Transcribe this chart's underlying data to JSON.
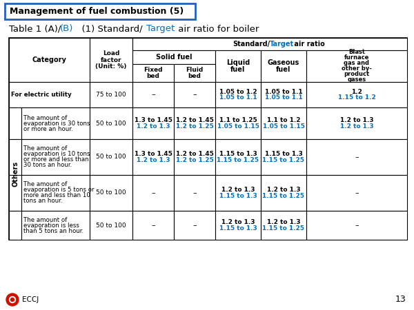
{
  "title_box": "Management of fuel combustion (5)",
  "bg_color": "#ffffff",
  "blue_color": "#0070C0",
  "black_color": "#000000",
  "border_blue": "#2060C0",
  "rows": [
    {
      "category": "For electric utility",
      "load": "75 to 100",
      "fixed_bed": [
        "–",
        ""
      ],
      "fluid_bed": [
        "–",
        ""
      ],
      "liquid_fuel": [
        "1.05 to 1.2",
        "1.05 to 1.1"
      ],
      "gaseous_fuel": [
        "1.05 to 1.1",
        "1.05 to 1.1"
      ],
      "blast": [
        "1.2",
        "1.15 to 1.2"
      ],
      "is_others": false,
      "cat_bold": true
    },
    {
      "category": "The amount of\nevaporation is 30 tons\nor more an hour.",
      "load": "50 to 100",
      "fixed_bed": [
        "1.3 to 1.45",
        "1.2 to 1.3"
      ],
      "fluid_bed": [
        "1.2 to 1.45",
        "1.2 to 1.25"
      ],
      "liquid_fuel": [
        "1.1 to 1.25",
        "1.05 to 1.15"
      ],
      "gaseous_fuel": [
        "1.1 to 1.2",
        "1.05 to 1.15"
      ],
      "blast": [
        "1.2 to 1.3",
        "1.2 to 1.3"
      ],
      "is_others": true,
      "cat_bold": false
    },
    {
      "category": "The amount of\nevaporation is 10 tons\nor more and less than\n30 tons an hour.",
      "load": "50 to 100",
      "fixed_bed": [
        "1.3 to 1.45",
        "1.2 to 1.3"
      ],
      "fluid_bed": [
        "1.2 to 1.45",
        "1.2 to 1.25"
      ],
      "liquid_fuel": [
        "1.15 to 1.3",
        "1.15 to 1.25"
      ],
      "gaseous_fuel": [
        "1.15 to 1.3",
        "1.15 to 1.25"
      ],
      "blast": [
        "–",
        ""
      ],
      "is_others": true,
      "cat_bold": false
    },
    {
      "category": "The amount of\nevaporation is 5 tons or\nmore and less than 10\ntons an hour.",
      "load": "50 to 100",
      "fixed_bed": [
        "–",
        ""
      ],
      "fluid_bed": [
        "–",
        ""
      ],
      "liquid_fuel": [
        "1.2 to 1.3",
        "1.15 to 1.3"
      ],
      "gaseous_fuel": [
        "1.2 to 1.3",
        "1.15 to 1.25"
      ],
      "blast": [
        "–",
        ""
      ],
      "is_others": true,
      "cat_bold": false
    },
    {
      "category": "The amount of\nevaporation is less\nthan 5 tons an hour.",
      "load": "50 to 100",
      "fixed_bed": [
        "–",
        ""
      ],
      "fluid_bed": [
        "–",
        ""
      ],
      "liquid_fuel": [
        "1.2 to 1.3",
        "1.15 to 1.3"
      ],
      "gaseous_fuel": [
        "1.2 to 1.3",
        "1.15 to 1.25"
      ],
      "blast": [
        "–",
        ""
      ],
      "is_others": true,
      "cat_bold": false
    }
  ]
}
